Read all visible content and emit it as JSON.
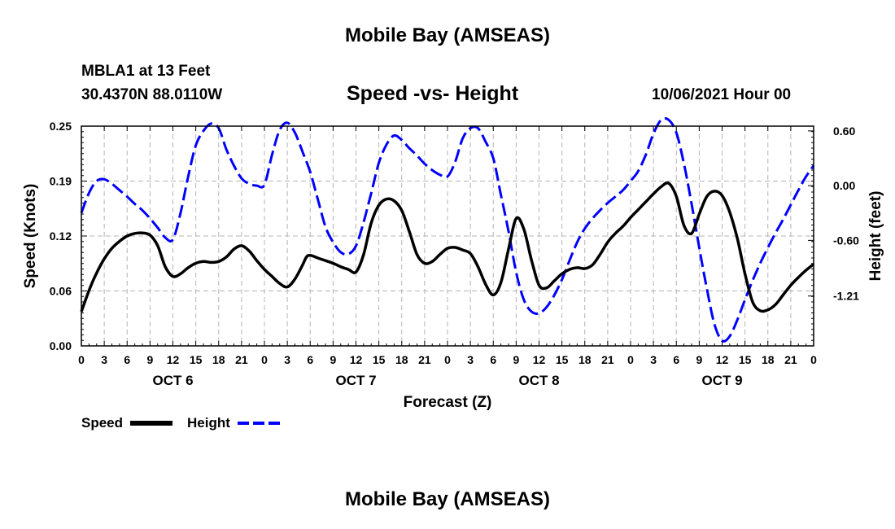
{
  "page": {
    "title_top": "Mobile Bay (AMSEAS)",
    "title_bottom": "Mobile Bay (AMSEAS)",
    "station": "MBLA1 at 13 Feet",
    "coords": "30.4370N  88.0110W",
    "subtitle": "Speed -vs- Height",
    "run_time": "10/06/2021 Hour 00"
  },
  "chart_data": {
    "type": "line",
    "title": "Speed -vs- Height",
    "xlabel": "Forecast (Z)",
    "ylabel_left": "Speed (Knots)",
    "ylabel_right": "Height (feet)",
    "x_range_hours": [
      0,
      96
    ],
    "ylim_left": [
      0.0,
      0.25
    ],
    "ylim_right": [
      -1.7566,
      0.6524
    ],
    "x_ticks": [
      {
        "hour": 0,
        "label": "0"
      },
      {
        "hour": 3,
        "label": "3"
      },
      {
        "hour": 6,
        "label": "6"
      },
      {
        "hour": 9,
        "label": "9"
      },
      {
        "hour": 12,
        "label": "12"
      },
      {
        "hour": 15,
        "label": "15"
      },
      {
        "hour": 18,
        "label": "18"
      },
      {
        "hour": 21,
        "label": "21"
      },
      {
        "hour": 24,
        "label": "0"
      },
      {
        "hour": 27,
        "label": "3"
      },
      {
        "hour": 30,
        "label": "6"
      },
      {
        "hour": 33,
        "label": "9"
      },
      {
        "hour": 36,
        "label": "12"
      },
      {
        "hour": 39,
        "label": "15"
      },
      {
        "hour": 42,
        "label": "18"
      },
      {
        "hour": 45,
        "label": "21"
      },
      {
        "hour": 48,
        "label": "0"
      },
      {
        "hour": 51,
        "label": "3"
      },
      {
        "hour": 54,
        "label": "6"
      },
      {
        "hour": 57,
        "label": "9"
      },
      {
        "hour": 60,
        "label": "12"
      },
      {
        "hour": 63,
        "label": "15"
      },
      {
        "hour": 66,
        "label": "18"
      },
      {
        "hour": 69,
        "label": "21"
      },
      {
        "hour": 72,
        "label": "0"
      },
      {
        "hour": 75,
        "label": "3"
      },
      {
        "hour": 78,
        "label": "6"
      },
      {
        "hour": 81,
        "label": "9"
      },
      {
        "hour": 84,
        "label": "12"
      },
      {
        "hour": 87,
        "label": "15"
      },
      {
        "hour": 90,
        "label": "18"
      },
      {
        "hour": 93,
        "label": "21"
      },
      {
        "hour": 96,
        "label": "0"
      }
    ],
    "day_labels": [
      {
        "hour": 12,
        "label": "OCT 6"
      },
      {
        "hour": 36,
        "label": "OCT 7"
      },
      {
        "hour": 60,
        "label": "OCT 8"
      },
      {
        "hour": 84,
        "label": "OCT 9"
      }
    ],
    "left_ticks": [
      {
        "value": 0.0,
        "label": "0.00"
      },
      {
        "value": 0.0625,
        "label": "0.06"
      },
      {
        "value": 0.125,
        "label": "0.12"
      },
      {
        "value": 0.1875,
        "label": "0.19"
      },
      {
        "value": 0.25,
        "label": "0.25"
      }
    ],
    "right_ticks": [
      {
        "value": 0.6,
        "label": "0.60"
      },
      {
        "value": 0.0,
        "label": "0.00"
      },
      {
        "value": -0.6,
        "label": "-0.60"
      },
      {
        "value": -1.21,
        "label": "-1.21"
      }
    ],
    "series": [
      {
        "name": "Speed",
        "axis": "left",
        "color": "#000000",
        "dash": "solid",
        "points": [
          [
            0,
            0.039
          ],
          [
            1,
            0.063
          ],
          [
            2,
            0.083
          ],
          [
            3,
            0.099
          ],
          [
            4,
            0.111
          ],
          [
            5,
            0.119
          ],
          [
            6,
            0.125
          ],
          [
            7,
            0.128
          ],
          [
            8,
            0.1285
          ],
          [
            9,
            0.126
          ],
          [
            10,
            0.114
          ],
          [
            11,
            0.09
          ],
          [
            12,
            0.079
          ],
          [
            13,
            0.082
          ],
          [
            14,
            0.089
          ],
          [
            15,
            0.094
          ],
          [
            16,
            0.096
          ],
          [
            17,
            0.095
          ],
          [
            18,
            0.096
          ],
          [
            19,
            0.101
          ],
          [
            20,
            0.11
          ],
          [
            21,
            0.114
          ],
          [
            22,
            0.108
          ],
          [
            23,
            0.097
          ],
          [
            24,
            0.087
          ],
          [
            25,
            0.079
          ],
          [
            26,
            0.071
          ],
          [
            27,
            0.067
          ],
          [
            28,
            0.076
          ],
          [
            29,
            0.092
          ],
          [
            29.5,
            0.101
          ],
          [
            30,
            0.103
          ],
          [
            31,
            0.1
          ],
          [
            32,
            0.097
          ],
          [
            33,
            0.094
          ],
          [
            34,
            0.09
          ],
          [
            35,
            0.087
          ],
          [
            36,
            0.084
          ],
          [
            37,
            0.104
          ],
          [
            38,
            0.14
          ],
          [
            39,
            0.16
          ],
          [
            40,
            0.167
          ],
          [
            41,
            0.165
          ],
          [
            42,
            0.154
          ],
          [
            43,
            0.13
          ],
          [
            44,
            0.104
          ],
          [
            45,
            0.094
          ],
          [
            46,
            0.096
          ],
          [
            47,
            0.104
          ],
          [
            48,
            0.111
          ],
          [
            49,
            0.112
          ],
          [
            50,
            0.109
          ],
          [
            51,
            0.105
          ],
          [
            52,
            0.09
          ],
          [
            53,
            0.07
          ],
          [
            54,
            0.058
          ],
          [
            55,
            0.072
          ],
          [
            56,
            0.11
          ],
          [
            57,
            0.145
          ],
          [
            58,
            0.133
          ],
          [
            59,
            0.098
          ],
          [
            60,
            0.069
          ],
          [
            61,
            0.066
          ],
          [
            62,
            0.074
          ],
          [
            63,
            0.082
          ],
          [
            64,
            0.087
          ],
          [
            65,
            0.089
          ],
          [
            66,
            0.088
          ],
          [
            67,
            0.092
          ],
          [
            68,
            0.104
          ],
          [
            69,
            0.118
          ],
          [
            70,
            0.128
          ],
          [
            71,
            0.136
          ],
          [
            72,
            0.146
          ],
          [
            73,
            0.155
          ],
          [
            74,
            0.164
          ],
          [
            75,
            0.173
          ],
          [
            76,
            0.181
          ],
          [
            77,
            0.185
          ],
          [
            78,
            0.17
          ],
          [
            79,
            0.137
          ],
          [
            80,
            0.128
          ],
          [
            81,
            0.15
          ],
          [
            82,
            0.17
          ],
          [
            83,
            0.176
          ],
          [
            84,
            0.171
          ],
          [
            85,
            0.152
          ],
          [
            86,
            0.122
          ],
          [
            87,
            0.082
          ],
          [
            88,
            0.05
          ],
          [
            89,
            0.04
          ],
          [
            90,
            0.041
          ],
          [
            91,
            0.047
          ],
          [
            92,
            0.058
          ],
          [
            93,
            0.069
          ],
          [
            94,
            0.078
          ],
          [
            95,
            0.086
          ],
          [
            96,
            0.093
          ]
        ]
      },
      {
        "name": "Height",
        "axis": "right",
        "color": "#0000ff",
        "dash": "dashed",
        "points": [
          [
            0,
            -0.3
          ],
          [
            1,
            -0.08
          ],
          [
            2,
            0.05
          ],
          [
            3,
            0.07
          ],
          [
            4,
            0.02
          ],
          [
            5,
            -0.05
          ],
          [
            6,
            -0.12
          ],
          [
            7,
            -0.2
          ],
          [
            8,
            -0.27
          ],
          [
            9,
            -0.36
          ],
          [
            10,
            -0.46
          ],
          [
            11,
            -0.57
          ],
          [
            12,
            -0.59
          ],
          [
            13,
            -0.3
          ],
          [
            14,
            0.1
          ],
          [
            15,
            0.44
          ],
          [
            16,
            0.6
          ],
          [
            17,
            0.68
          ],
          [
            18,
            0.63
          ],
          [
            19,
            0.4
          ],
          [
            20,
            0.22
          ],
          [
            21,
            0.08
          ],
          [
            22,
            0.02
          ],
          [
            23,
            0.0
          ],
          [
            24,
            0.01
          ],
          [
            25,
            0.34
          ],
          [
            26,
            0.61
          ],
          [
            27,
            0.69
          ],
          [
            28,
            0.58
          ],
          [
            29,
            0.37
          ],
          [
            30,
            0.15
          ],
          [
            31,
            -0.15
          ],
          [
            32,
            -0.45
          ],
          [
            33,
            -0.62
          ],
          [
            34,
            -0.73
          ],
          [
            35,
            -0.75
          ],
          [
            36,
            -0.66
          ],
          [
            37,
            -0.4
          ],
          [
            38,
            -0.08
          ],
          [
            39,
            0.25
          ],
          [
            40,
            0.45
          ],
          [
            41,
            0.55
          ],
          [
            42,
            0.5
          ],
          [
            43,
            0.41
          ],
          [
            44,
            0.33
          ],
          [
            45,
            0.24
          ],
          [
            46,
            0.17
          ],
          [
            47,
            0.12
          ],
          [
            48,
            0.1
          ],
          [
            49,
            0.26
          ],
          [
            50,
            0.52
          ],
          [
            51,
            0.63
          ],
          [
            52,
            0.63
          ],
          [
            53,
            0.48
          ],
          [
            54,
            0.3
          ],
          [
            55,
            -0.1
          ],
          [
            56,
            -0.5
          ],
          [
            57,
            -0.95
          ],
          [
            58,
            -1.25
          ],
          [
            59,
            -1.38
          ],
          [
            60,
            -1.4
          ],
          [
            61,
            -1.33
          ],
          [
            62,
            -1.2
          ],
          [
            63,
            -1.03
          ],
          [
            64,
            -0.82
          ],
          [
            65,
            -0.62
          ],
          [
            66,
            -0.47
          ],
          [
            67,
            -0.36
          ],
          [
            68,
            -0.27
          ],
          [
            69,
            -0.19
          ],
          [
            70,
            -0.12
          ],
          [
            71,
            -0.05
          ],
          [
            72,
            0.05
          ],
          [
            73,
            0.16
          ],
          [
            74,
            0.34
          ],
          [
            75,
            0.57
          ],
          [
            76,
            0.72
          ],
          [
            77,
            0.72
          ],
          [
            78,
            0.58
          ],
          [
            79,
            0.24
          ],
          [
            80,
            -0.2
          ],
          [
            81,
            -0.68
          ],
          [
            82,
            -1.13
          ],
          [
            83,
            -1.52
          ],
          [
            84,
            -1.7
          ],
          [
            85,
            -1.65
          ],
          [
            86,
            -1.47
          ],
          [
            87,
            -1.25
          ],
          [
            88,
            -1.04
          ],
          [
            89,
            -0.85
          ],
          [
            90,
            -0.68
          ],
          [
            91,
            -0.52
          ],
          [
            92,
            -0.37
          ],
          [
            93,
            -0.21
          ],
          [
            94,
            -0.05
          ],
          [
            95,
            0.1
          ],
          [
            96,
            0.22
          ]
        ]
      }
    ]
  },
  "legend": {
    "speed_label": "Speed",
    "height_label": "Height",
    "speed_color": "#000000",
    "height_color": "#0000ff"
  }
}
